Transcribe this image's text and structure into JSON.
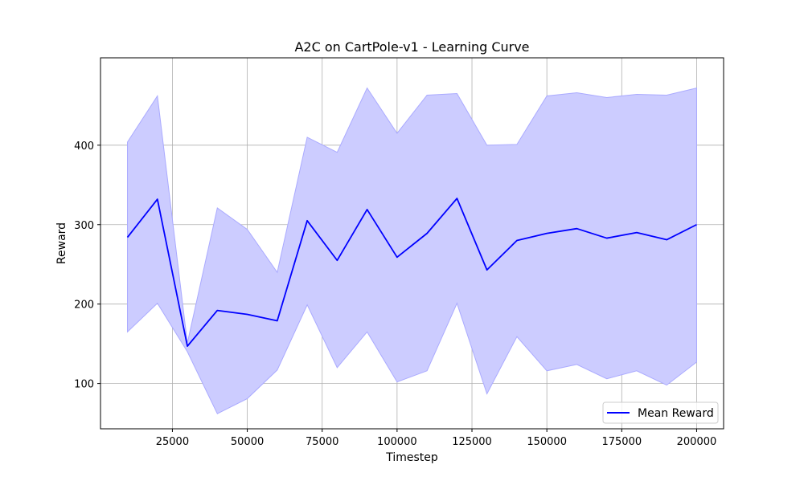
{
  "chart_data": {
    "type": "line",
    "title": "A2C on CartPole-v1 - Learning Curve",
    "xlabel": "Timestep",
    "ylabel": "Reward",
    "xlim": [
      1000,
      209000
    ],
    "ylim": [
      43,
      510
    ],
    "xticks": [
      25000,
      50000,
      75000,
      100000,
      125000,
      150000,
      175000,
      200000
    ],
    "yticks": [
      100,
      200,
      300,
      400
    ],
    "grid": true,
    "legend_position": "lower-right",
    "series": [
      {
        "name": "Mean Reward",
        "color": "#0000ff",
        "x": [
          10000,
          20000,
          30000,
          40000,
          50000,
          60000,
          70000,
          80000,
          90000,
          100000,
          110000,
          120000,
          130000,
          140000,
          150000,
          160000,
          170000,
          180000,
          190000,
          200000
        ],
        "values": [
          284,
          332,
          147,
          192,
          187,
          179,
          305,
          255,
          319,
          259,
          289,
          333,
          243,
          280,
          289,
          295,
          283,
          290,
          281,
          300
        ],
        "band_lower": [
          165,
          201,
          140,
          62,
          81,
          117,
          199,
          120,
          165,
          102,
          116,
          201,
          87,
          159,
          116,
          124,
          106,
          116,
          98,
          127
        ],
        "band_upper": [
          404,
          462,
          151,
          321,
          294,
          240,
          410,
          391,
          472,
          415,
          463,
          465,
          400,
          401,
          462,
          466,
          460,
          464,
          463,
          472
        ],
        "band_color": "#ccccff"
      }
    ]
  }
}
